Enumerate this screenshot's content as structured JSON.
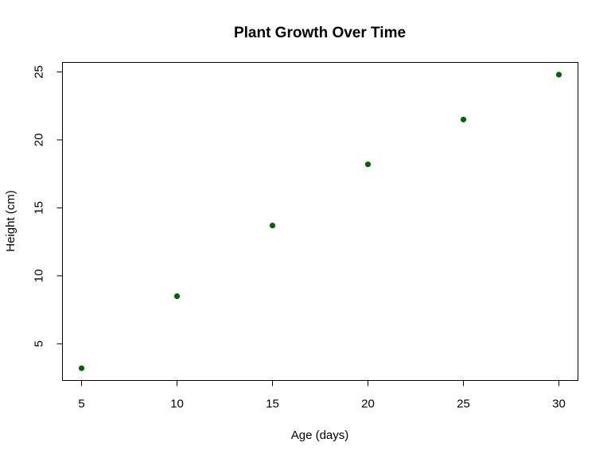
{
  "chart_data": {
    "type": "scatter",
    "title": "Plant Growth Over Time",
    "xlabel": "Age (days)",
    "ylabel": "Height (cm)",
    "x": [
      5,
      10,
      15,
      20,
      25,
      30
    ],
    "y": [
      3.2,
      8.5,
      13.7,
      18.2,
      21.5,
      24.8
    ],
    "xlim": [
      4.0,
      31.0
    ],
    "ylim": [
      2.3,
      25.7
    ],
    "x_ticks": [
      5,
      10,
      15,
      20,
      25,
      30
    ],
    "y_ticks": [
      5,
      10,
      15,
      20,
      25
    ],
    "grid": false,
    "point_color": "#006400"
  }
}
